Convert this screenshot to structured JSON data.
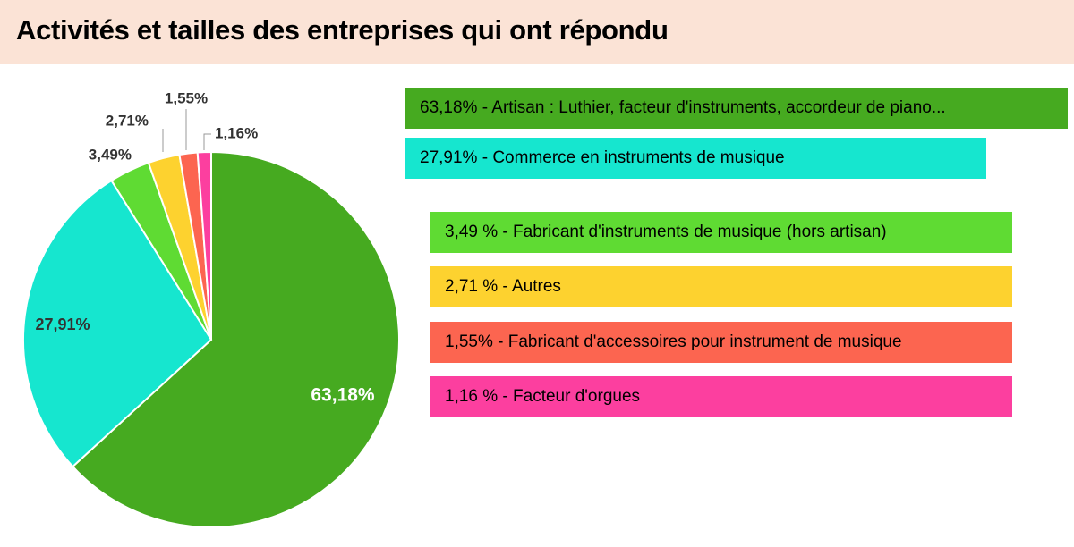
{
  "header": {
    "title": "Activités et tailles des entreprises qui ont répondu",
    "background": "#fbe3d6"
  },
  "chart_data": {
    "type": "pie",
    "title": "Activités et tailles des entreprises qui ont répondu",
    "slices": [
      {
        "name": "Artisan : Luthier, facteur d'instruments, accordeur de piano...",
        "value": 63.18,
        "label": "63,18%",
        "color": "#46aa20"
      },
      {
        "name": "Commerce en instruments de musique",
        "value": 27.91,
        "label": "27,91%",
        "color": "#16e6cf"
      },
      {
        "name": "Fabricant d'instruments de musique (hors artisan)",
        "value": 3.49,
        "label": "3,49%",
        "color": "#5fdb33"
      },
      {
        "name": "Autres",
        "value": 2.71,
        "label": "2,71%",
        "color": "#fdd22f"
      },
      {
        "name": "Fabricant d'accessoires pour instrument de musique",
        "value": 1.55,
        "label": "1,55%",
        "color": "#fc6550"
      },
      {
        "name": "Facteur d'orgues",
        "value": 1.16,
        "label": "1,16%",
        "color": "#fc3f9f"
      }
    ]
  },
  "legend": {
    "items": [
      {
        "text": "63,18% - Artisan : Luthier, facteur d'instruments, accordeur de piano...",
        "color": "#46aa20"
      },
      {
        "text": "27,91% - Commerce en instruments de musique",
        "color": "#16e6cf"
      },
      {
        "text": "3,49 % - Fabricant d'instruments de musique (hors artisan)",
        "color": "#5fdb33"
      },
      {
        "text": "2,71 % - Autres",
        "color": "#fdd22f"
      },
      {
        "text": "1,55% - Fabricant d'accessoires pour instrument de musique",
        "color": "#fc6550"
      },
      {
        "text": "1,16 % - Facteur d'orgues",
        "color": "#fc3f9f"
      }
    ]
  }
}
